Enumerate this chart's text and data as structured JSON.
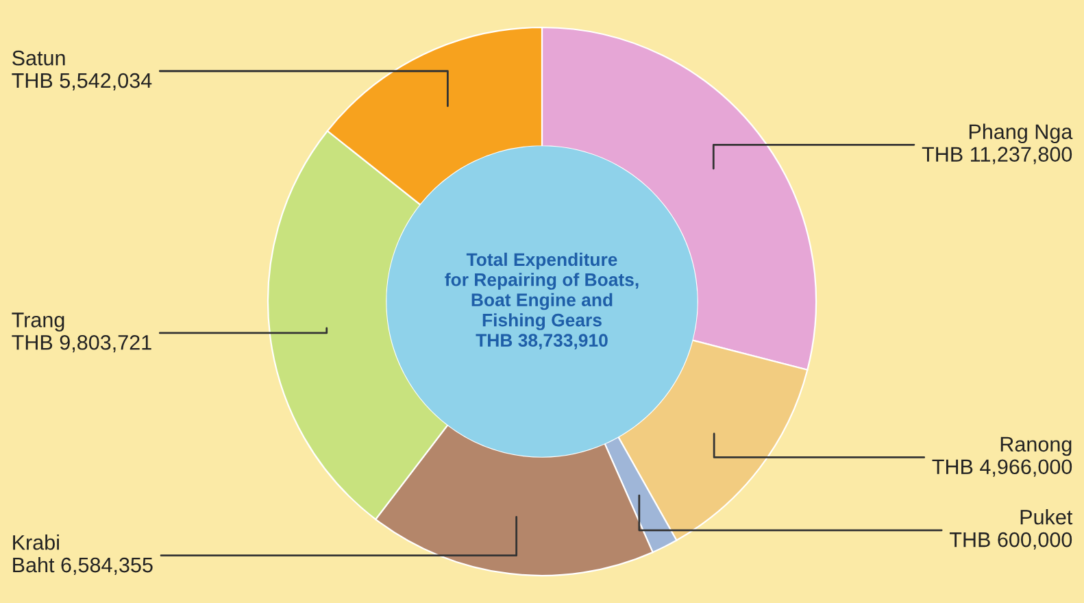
{
  "chart_data": {
    "type": "donut",
    "title": "Total Expenditure\nfor Repairing of Boats,\nBoat Engine and\nFishing Gears\nTHB 38,733,910",
    "categories": [
      "Phang Nga",
      "Ranong",
      "Puket",
      "Krabi",
      "Trang",
      "Satun"
    ],
    "values": [
      11237800,
      4966000,
      600000,
      6584355,
      9803721,
      5542034
    ],
    "value_labels": [
      "THB 11,237,800",
      "THB 4,966,000",
      "THB 600,000",
      "Baht 6,584,355",
      "THB 9,803,721",
      "THB 5,542,034"
    ],
    "colors": [
      "#e6a6d6",
      "#f2cc80",
      "#9fb6d8",
      "#b4866a",
      "#c8e27e",
      "#f7a21e"
    ]
  }
}
